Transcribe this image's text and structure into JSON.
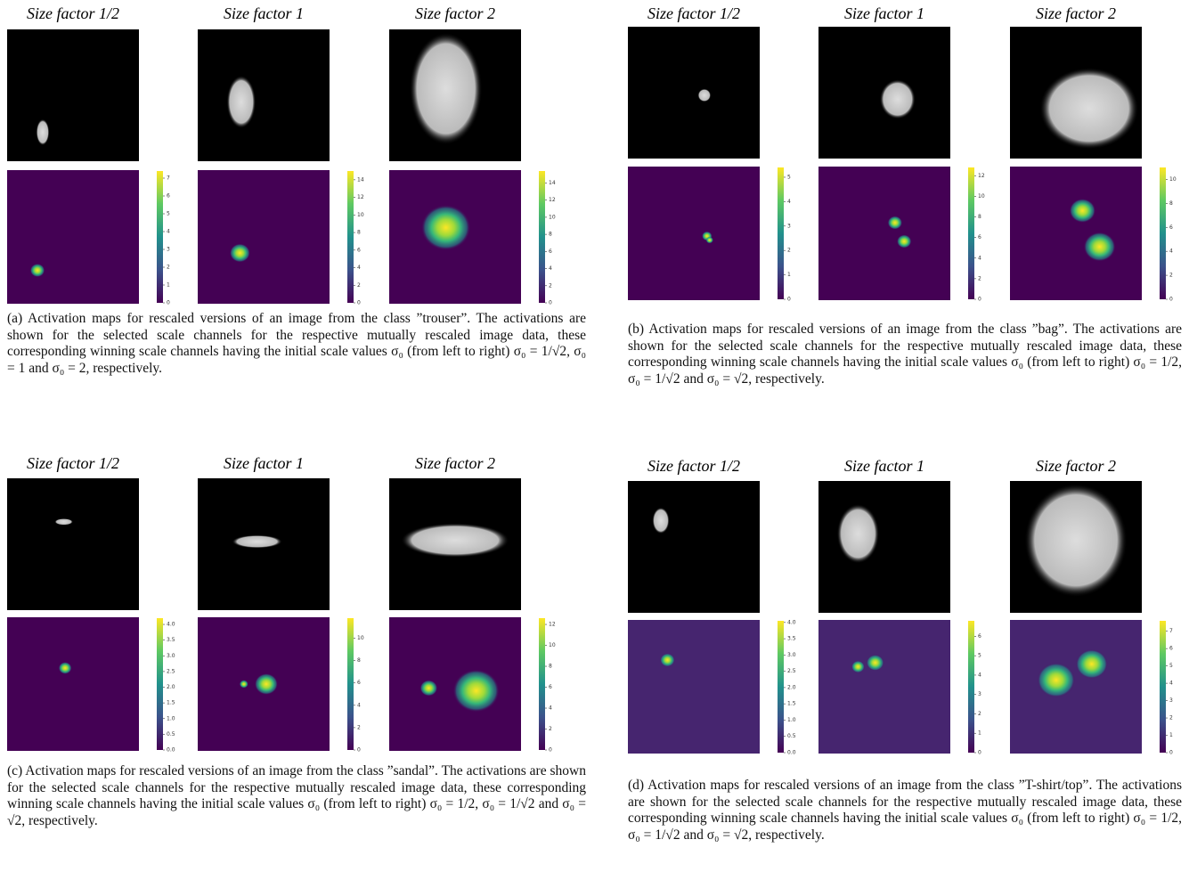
{
  "panels": [
    {
      "column_titles": [
        "Size factor 1/2",
        "Size factor 1",
        "Size factor 2"
      ],
      "colorbars": [
        {
          "lim": [
            0,
            7.4
          ],
          "ticks": [
            0,
            1,
            2,
            3,
            4,
            5,
            6,
            7
          ]
        },
        {
          "lim": [
            0,
            15
          ],
          "ticks": [
            0,
            2,
            4,
            6,
            8,
            10,
            12,
            14
          ]
        },
        {
          "lim": [
            0,
            15.4
          ],
          "ticks": [
            0,
            2,
            4,
            6,
            8,
            10,
            12,
            14
          ]
        }
      ],
      "caption": "(a) Activation maps for rescaled versions of an image from the class ”trouser”. The activations are shown for the selected scale channels for the respective mutually rescaled image data, these corresponding winning scale channels having the initial scale values σ₀ (from left to right) σ₀ = 1/√2, σ₀ = 1 and σ₀ = 2, respectively."
    },
    {
      "column_titles": [
        "Size factor 1/2",
        "Size factor 1",
        "Size factor 2"
      ],
      "colorbars": [
        {
          "lim": [
            0,
            5.4
          ],
          "ticks": [
            0,
            1,
            2,
            3,
            4,
            5
          ]
        },
        {
          "lim": [
            0,
            12.8
          ],
          "ticks": [
            0,
            2,
            4,
            6,
            8,
            10,
            12
          ]
        },
        {
          "lim": [
            0,
            11
          ],
          "ticks": [
            0,
            2,
            4,
            6,
            8,
            10
          ]
        }
      ],
      "caption": "(b) Activation maps for rescaled versions of an image from the class ”bag”. The activations are shown for the selected scale channels for the respective mutually rescaled image data, these corresponding winning scale channels having the initial scale values σ₀ (from left to right) σ₀ = 1/2, σ₀ = 1/√2 and σ₀ = √2, respectively."
    },
    {
      "column_titles": [
        "Size factor 1/2",
        "Size factor 1",
        "Size factor 2"
      ],
      "colorbars": [
        {
          "lim": [
            0,
            4.2
          ],
          "ticks": [
            {
              "value": 0,
              "label": "0.0"
            },
            0.5,
            {
              "value": 1,
              "label": "1.0"
            },
            1.5,
            {
              "value": 2,
              "label": "2.0"
            },
            2.5,
            {
              "value": 3,
              "label": "3.0"
            },
            3.5,
            {
              "value": 4,
              "label": "4.0"
            }
          ]
        },
        {
          "lim": [
            0,
            11.8
          ],
          "ticks": [
            0,
            2,
            4,
            6,
            8,
            10
          ]
        },
        {
          "lim": [
            0,
            12.6
          ],
          "ticks": [
            0,
            2,
            4,
            6,
            8,
            10,
            12
          ]
        }
      ],
      "caption": "(c) Activation maps for rescaled versions of an image from the class ”sandal”. The activations are shown for the selected scale channels for the respective mutually rescaled image data, these corresponding winning scale channels having the initial scale values σ₀ (from left to right) σ₀ = 1/2, σ₀ = 1/√2 and σ₀ = √2, respectively."
    },
    {
      "column_titles": [
        "Size factor 1/2",
        "Size factor 1",
        "Size factor 2"
      ],
      "colorbars": [
        {
          "lim": [
            0,
            4.05
          ],
          "ticks": [
            {
              "value": 0,
              "label": "0.0"
            },
            0.5,
            {
              "value": 1,
              "label": "1.0"
            },
            1.5,
            {
              "value": 2,
              "label": "2.0"
            },
            2.5,
            {
              "value": 3,
              "label": "3.0"
            },
            3.5,
            {
              "value": 4,
              "label": "4.0"
            }
          ]
        },
        {
          "lim": [
            0,
            6.8
          ],
          "ticks": [
            0,
            1,
            2,
            3,
            4,
            5,
            6
          ]
        },
        {
          "lim": [
            0,
            7.6
          ],
          "ticks": [
            0,
            1,
            2,
            3,
            4,
            5,
            6,
            7
          ]
        }
      ],
      "caption": "(d) Activation maps for rescaled versions of an image from the class ”T-shirt/top”. The activations are shown for the selected scale channels for the respective mutually rescaled image data, these corresponding winning scale channels having the initial scale values σ₀ (from left to right) σ₀ = 1/2, σ₀ = 1/√2 and σ₀ = √2, respectively."
    }
  ]
}
